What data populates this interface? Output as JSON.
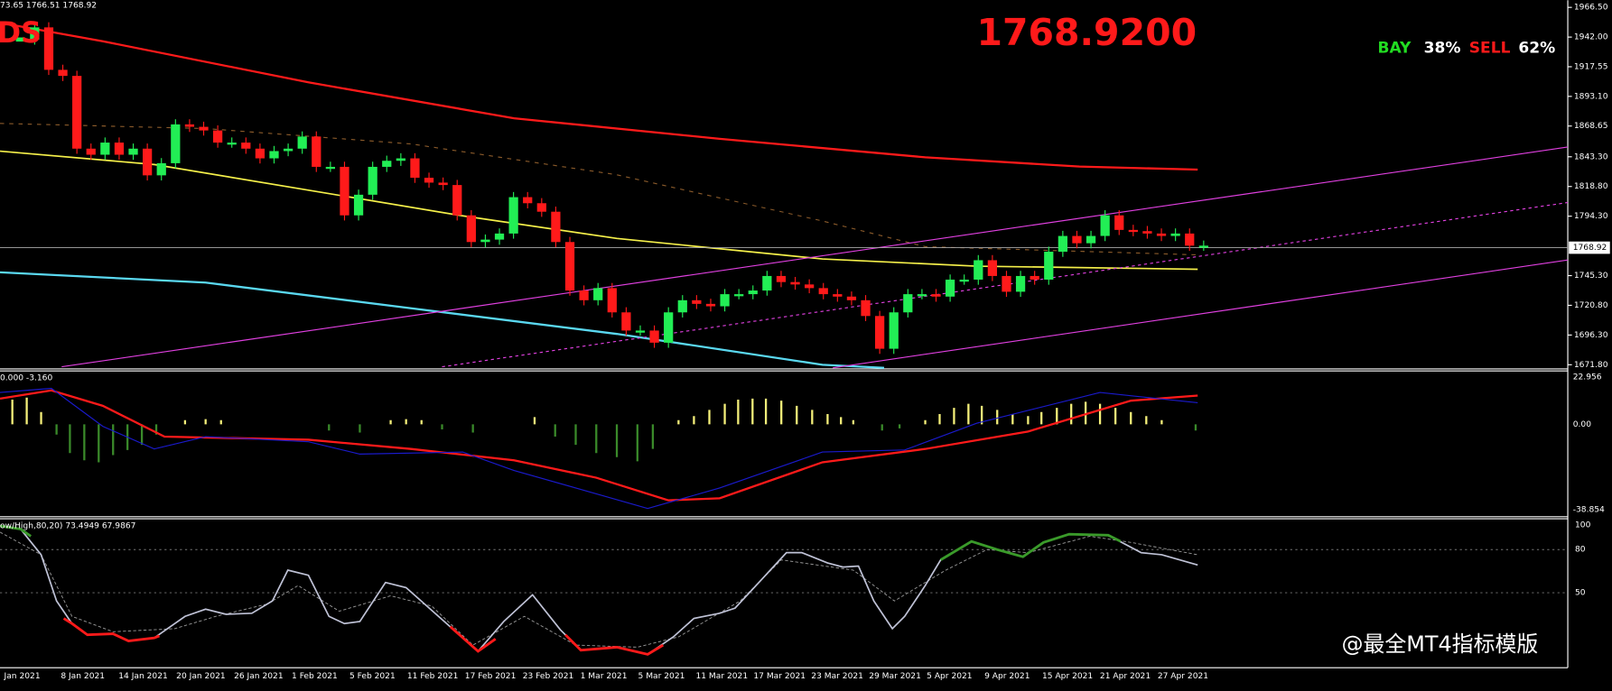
{
  "corner_title": "DS",
  "header_info": "73.65 1766.51 1768.92",
  "price": "1768.9200",
  "bay_label": "BAY",
  "bay_pct": "38%",
  "sell_label": "SELL",
  "sell_pct": "62%",
  "current_price_tag": "1768.92",
  "price_axis": [
    {
      "value": 1966.5,
      "label": "1966.50"
    },
    {
      "value": 1942.0,
      "label": "1942.00"
    },
    {
      "value": 1917.55,
      "label": "1917.55"
    },
    {
      "value": 1893.1,
      "label": "1893.10"
    },
    {
      "value": 1868.65,
      "label": "1868.65"
    },
    {
      "value": 1843.3,
      "label": "1843.30"
    },
    {
      "value": 1818.8,
      "label": "1818.80"
    },
    {
      "value": 1794.3,
      "label": "1794.30"
    },
    {
      "value": 1745.3,
      "label": "1745.30"
    },
    {
      "value": 1720.8,
      "label": "1720.80"
    },
    {
      "value": 1696.3,
      "label": "1696.30"
    },
    {
      "value": 1671.8,
      "label": "1671.80"
    }
  ],
  "closes": [
    1940,
    1950,
    1915,
    1910,
    1850,
    1845,
    1855,
    1845,
    1850,
    1828,
    1838,
    1870,
    1868,
    1865,
    1855,
    1855,
    1850,
    1842,
    1848,
    1850,
    1860,
    1835,
    1835,
    1795,
    1812,
    1835,
    1840,
    1842,
    1826,
    1822,
    1820,
    1795,
    1773,
    1775,
    1780,
    1810,
    1805,
    1798,
    1773,
    1733,
    1725,
    1735,
    1715,
    1700,
    1700,
    1690,
    1715,
    1725,
    1722,
    1720,
    1730,
    1730,
    1733,
    1745,
    1740,
    1738,
    1735,
    1730,
    1728,
    1725,
    1712,
    1685,
    1715,
    1730,
    1730,
    1728,
    1742,
    1742,
    1758,
    1745,
    1732,
    1745,
    1742,
    1765,
    1778,
    1772,
    1778,
    1795,
    1783,
    1782,
    1780,
    1778,
    1780,
    1770,
    1770
  ],
  "macd_header": "0.000 -3.160",
  "macd_axis": [
    "22.956",
    "0.00",
    "-38.854"
  ],
  "stoch_header": "ow/High,80,20) 73.4949 67.9867",
  "stoch_axis": [
    "100",
    "80",
    "50"
  ],
  "dates": [
    "Jan 2021",
    "8 Jan 2021",
    "14 Jan 2021",
    "20 Jan 2021",
    "26 Jan 2021",
    "1 Feb 2021",
    "5 Feb 2021",
    "11 Feb 2021",
    "17 Feb 2021",
    "23 Feb 2021",
    "1 Mar 2021",
    "5 Mar 2021",
    "11 Mar 2021",
    "17 Mar 2021",
    "23 Mar 2021",
    "29 Mar 2021",
    "5 Apr 2021",
    "9 Apr 2021",
    "15 Apr 2021",
    "21 Apr 2021",
    "27 Apr 2021"
  ],
  "watermark": "@最全MT4指标模版"
}
